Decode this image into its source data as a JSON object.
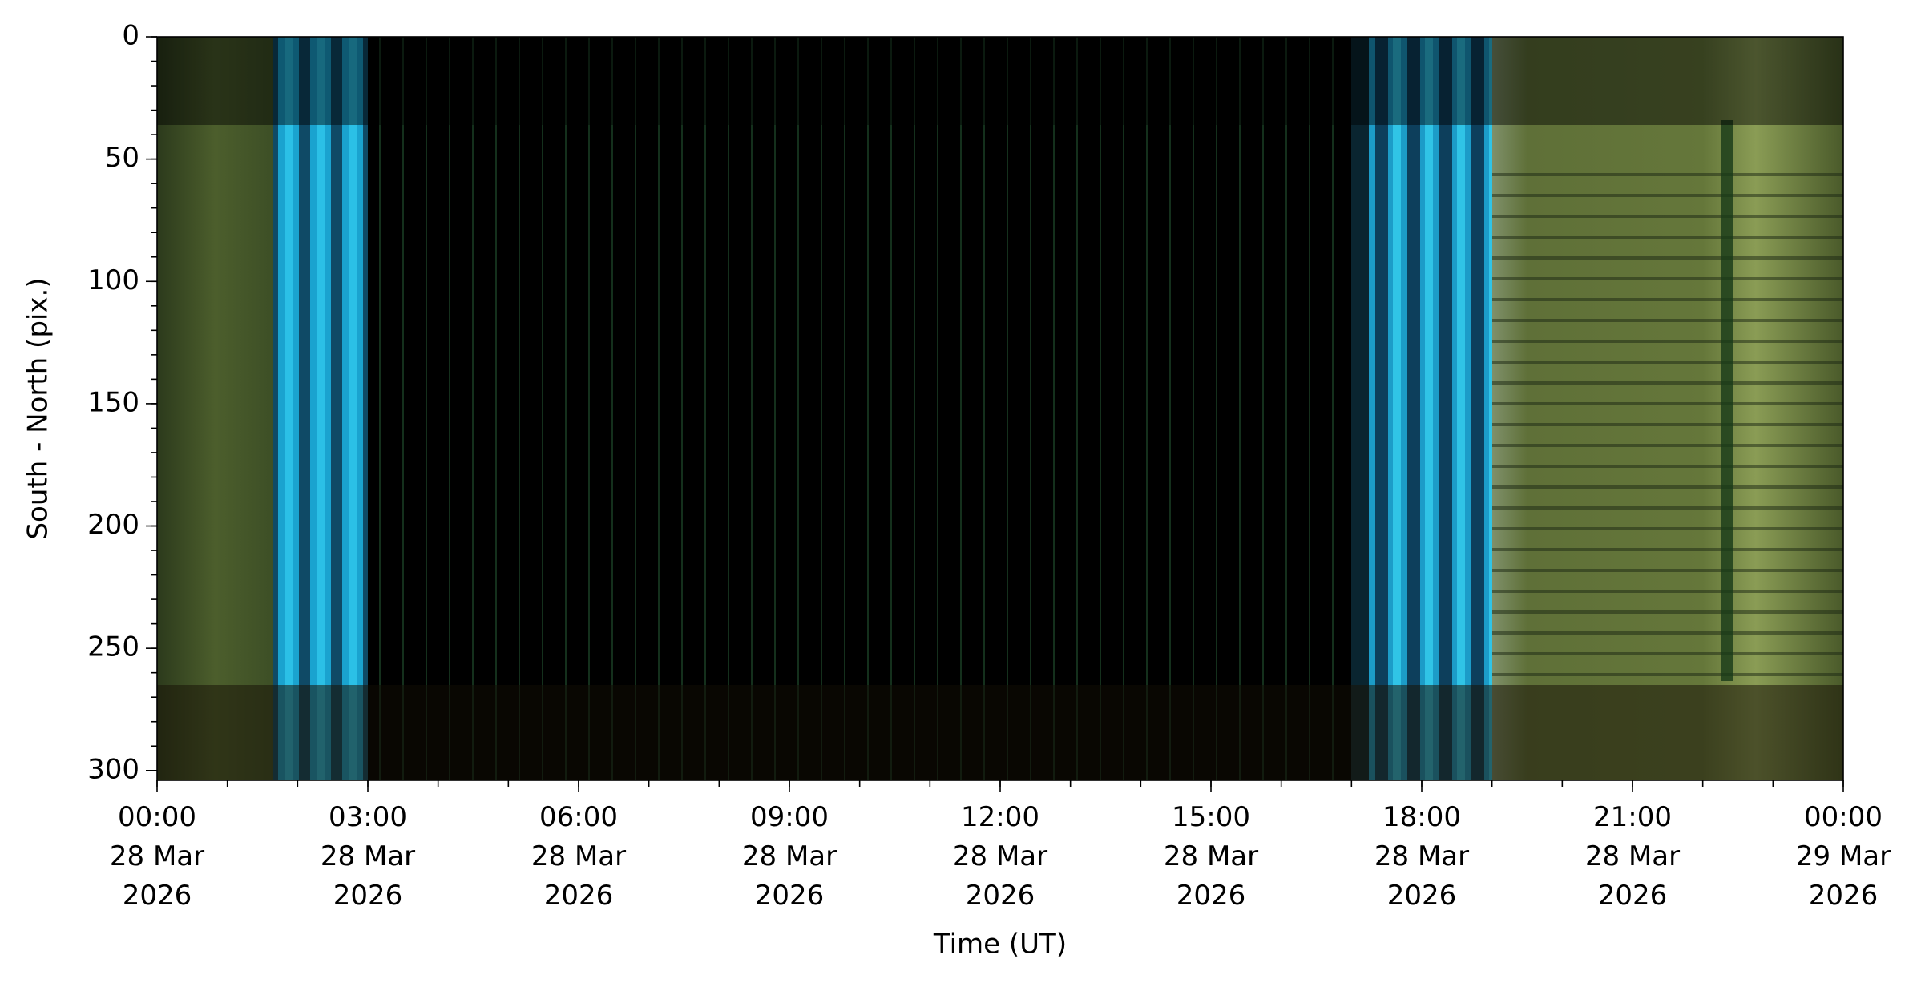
{
  "chart_data": {
    "type": "keogram",
    "xlabel": "Time (UT)",
    "ylabel": "South - North (pix.)",
    "xlim": [
      0,
      24
    ],
    "xticks": [
      {
        "value": 0,
        "label": "00:00\n28 Mar\n2026"
      },
      {
        "value": 3,
        "label": "03:00\n28 Mar\n2026"
      },
      {
        "value": 6,
        "label": "06:00\n28 Mar\n2026"
      },
      {
        "value": 9,
        "label": "09:00\n28 Mar\n2026"
      },
      {
        "value": 12,
        "label": "12:00\n28 Mar\n2026"
      },
      {
        "value": 15,
        "label": "15:00\n28 Mar\n2026"
      },
      {
        "value": 18,
        "label": "18:00\n28 Mar\n2026"
      },
      {
        "value": 21,
        "label": "21:00\n28 Mar\n2026"
      },
      {
        "value": 24,
        "label": "00:00\n29 Mar\n2026"
      }
    ],
    "xminorticks": [
      0,
      1,
      2,
      3,
      4,
      5,
      6,
      7,
      8,
      9,
      10,
      11,
      12,
      13,
      14,
      15,
      16,
      17,
      18,
      19,
      20,
      21,
      22,
      23,
      24
    ],
    "ylim": [
      0,
      304
    ],
    "y_inverted": true,
    "yticks": [
      0,
      50,
      100,
      150,
      200,
      250,
      300
    ],
    "yminorticks": [
      0,
      10,
      20,
      30,
      40,
      50,
      60,
      70,
      80,
      90,
      100,
      110,
      120,
      130,
      140,
      150,
      160,
      170,
      180,
      190,
      200,
      210,
      220,
      230,
      240,
      250,
      260,
      270,
      280,
      290,
      300
    ]
  }
}
